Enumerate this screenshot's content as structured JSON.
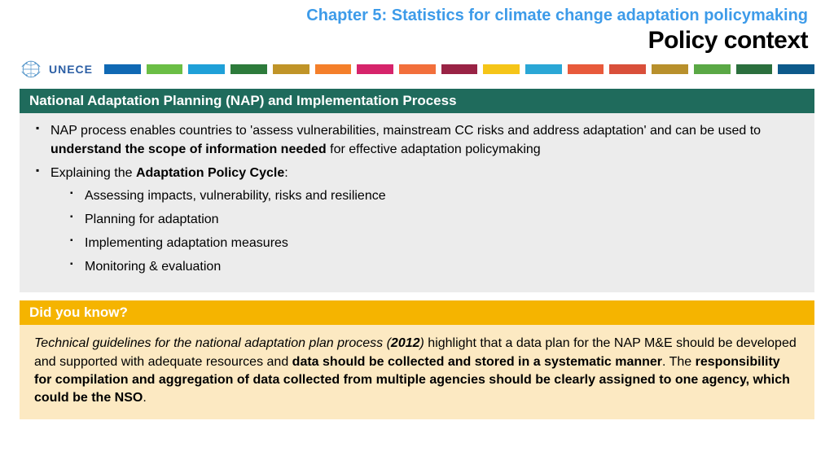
{
  "header": {
    "chapter_line": "Chapter 5: Statistics for climate change adaptation policymaking",
    "chapter_color": "#3d9be9",
    "title": "Policy context",
    "title_color": "#000000"
  },
  "logo": {
    "text": "UNECE",
    "text_color": "#2c5fa5",
    "emblem_color": "#4a8fc7"
  },
  "color_strip": [
    "#1069b4",
    "#6bbe45",
    "#1fa0d8",
    "#2d7b3b",
    "#c09428",
    "#f47f2a",
    "#d6246b",
    "#f26f3b",
    "#992345",
    "#f5c518",
    "#2aa7d6",
    "#e85a3b",
    "#d94f3a",
    "#b8902c",
    "#5aa845",
    "#2b6f3e",
    "#0d5a8b"
  ],
  "nap_section": {
    "header_bg": "#1f6b5c",
    "header_text": "National Adaptation Planning (NAP) and Implementation Process",
    "body_bg": "#ececec",
    "bullet1_a": "NAP process enables countries to 'assess vulnerabilities, mainstream CC risks and address adaptation' and can be used to ",
    "bullet1_b": "understand the scope of information needed",
    "bullet1_c": " for effective adaptation policymaking",
    "bullet2_a": "Explaining the ",
    "bullet2_b": "Adaptation Policy Cycle",
    "bullet2_c": ":",
    "sub1": "Assessing impacts, vulnerability, risks and resilience",
    "sub2": "Planning for adaptation",
    "sub3": "Implementing adaptation measures",
    "sub4": "Monitoring & evaluation"
  },
  "dyk_section": {
    "header_bg": "#f5b400",
    "header_text": "Did you know?",
    "body_bg": "#fce9c2",
    "p1_a": "Technical guidelines for the national adaptation plan process (",
    "p1_b": "2012",
    "p1_c": ")",
    "p1_d": " highlight that a data plan for the NAP M&E should be developed and supported with adequate resources and ",
    "p1_e": "data should be collected and stored in a systematic manner",
    "p1_f": ". The ",
    "p1_g": "responsibility for compilation and aggregation of data collected from multiple agencies should be clearly assigned to one agency, which could be the NSO",
    "p1_h": "."
  }
}
